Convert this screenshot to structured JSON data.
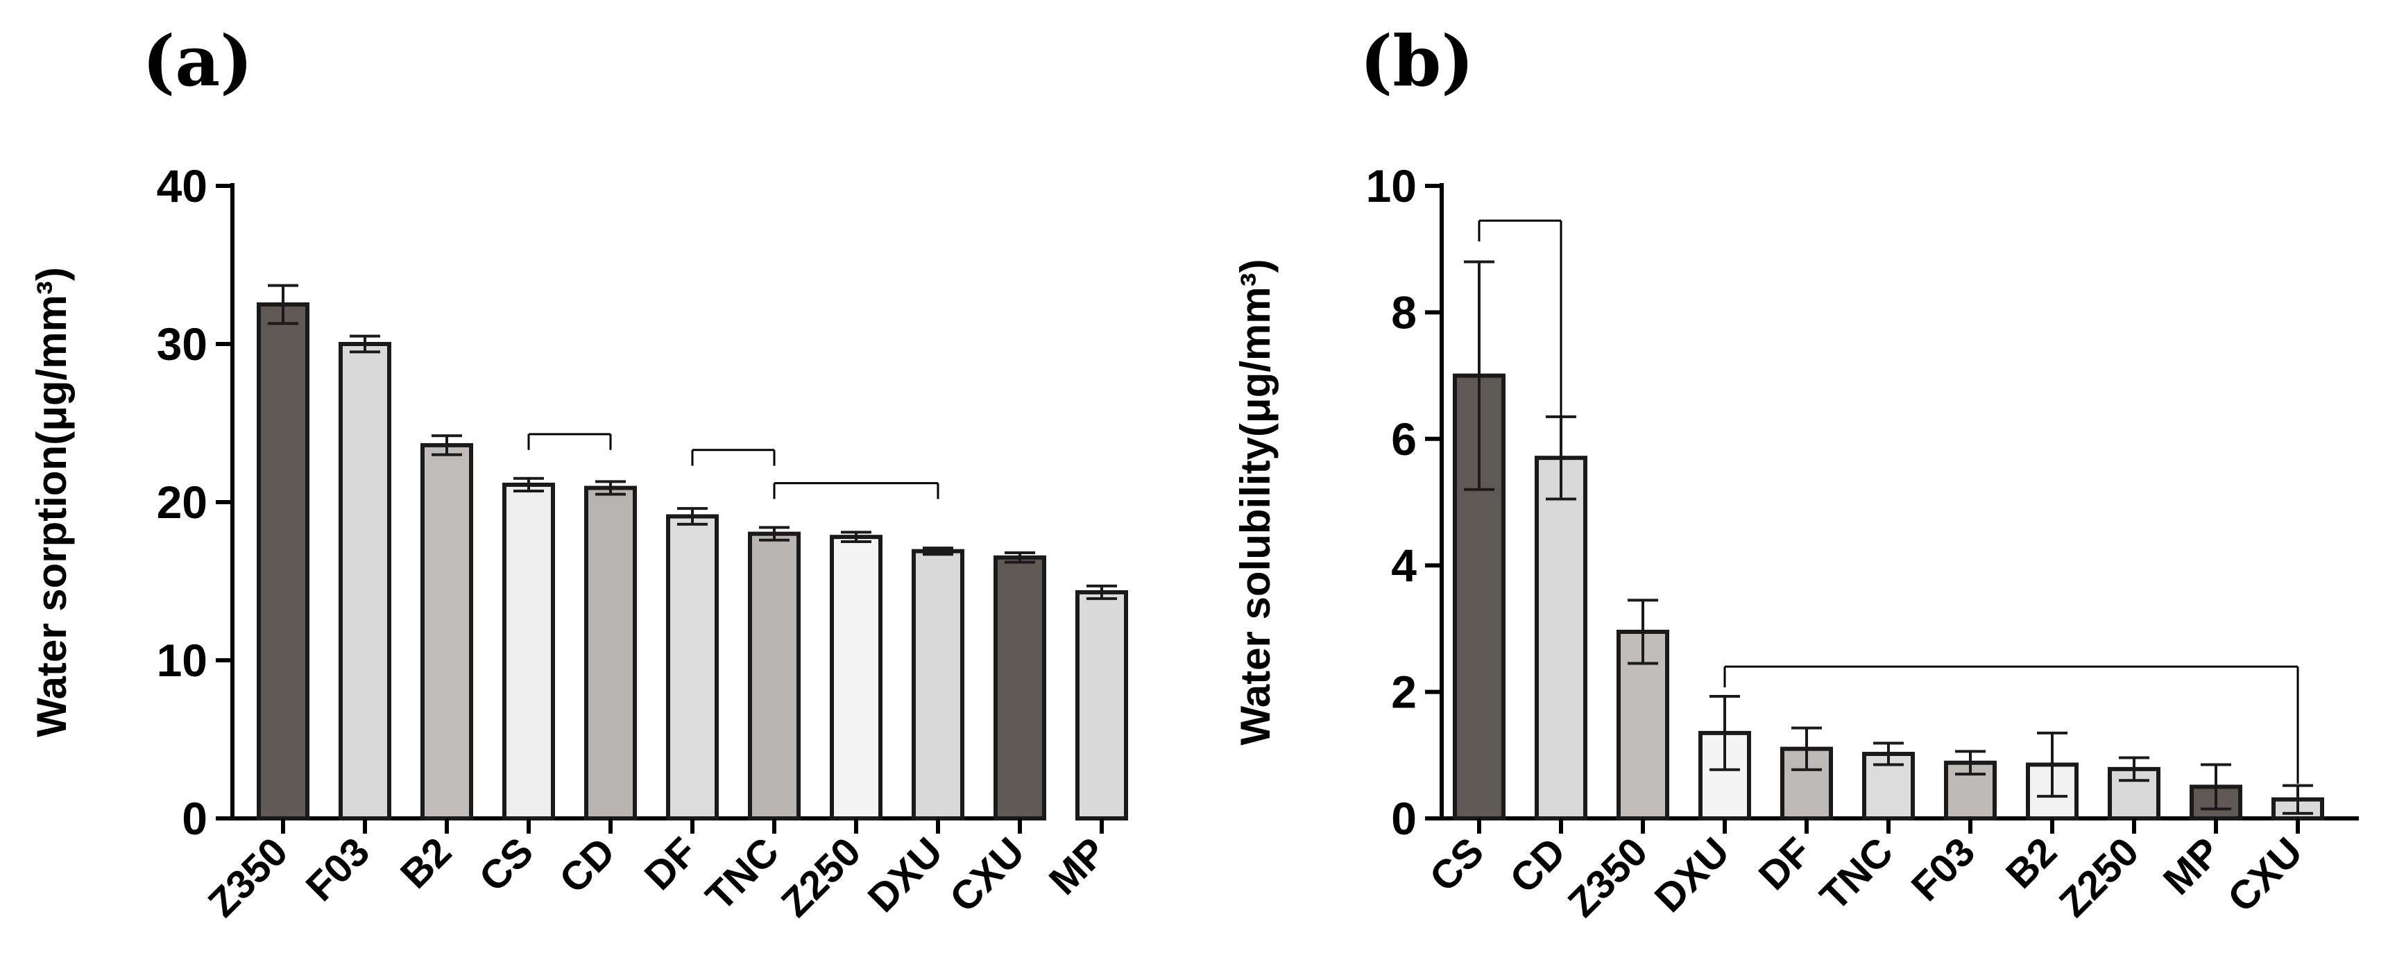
{
  "panels": [
    {
      "letter": "(a)"
    },
    {
      "letter": "(b)"
    }
  ],
  "chart_data": [
    {
      "type": "bar",
      "panel": "(a)",
      "title": "",
      "xlabel": "",
      "ylabel": "Water sorption(μg/mm³)",
      "ylim": [
        0,
        40
      ],
      "yticks": [
        0,
        10,
        20,
        30,
        40
      ],
      "categories": [
        "Z350",
        "F03",
        "B2",
        "CS",
        "CD",
        "DF",
        "TNC",
        "Z250",
        "DXU",
        "CXU",
        "MP"
      ],
      "values": [
        32.5,
        30.0,
        23.6,
        21.1,
        20.9,
        19.1,
        18.0,
        17.8,
        16.9,
        16.5,
        14.3
      ],
      "errors": [
        1.2,
        0.5,
        0.6,
        0.4,
        0.4,
        0.5,
        0.4,
        0.3,
        0.2,
        0.3,
        0.4
      ],
      "fills": [
        "#5f5854",
        "#d9d9d9",
        "#bfbcba",
        "#ededed",
        "#b7b3b1",
        "#dcdcdc",
        "#b9b5b3",
        "#f4f4f4",
        "#d9d9d9",
        "#5f5854",
        "#dadada"
      ],
      "brackets": [
        {
          "from": "CS",
          "to": "CD",
          "y": 24.3,
          "drop": 1.0
        },
        {
          "from": "DF",
          "to": "TNC",
          "y": 23.3,
          "drop": 1.0
        },
        {
          "from": "TNC",
          "to": "DXU",
          "y": 21.2,
          "drop": 1.0
        }
      ]
    },
    {
      "type": "bar",
      "panel": "(b)",
      "title": "",
      "xlabel": "",
      "ylabel": "Water solubility(μg/mm³)",
      "ylim": [
        0,
        10
      ],
      "yticks": [
        0,
        2,
        4,
        6,
        8,
        10
      ],
      "categories": [
        "CS",
        "CD",
        "Z350",
        "DXU",
        "DF",
        "TNC",
        "F03",
        "B2",
        "Z250",
        "MP",
        "CXU"
      ],
      "values": [
        7.0,
        5.7,
        2.95,
        1.35,
        1.1,
        1.02,
        0.88,
        0.85,
        0.78,
        0.5,
        0.3
      ],
      "errors": [
        1.8,
        0.65,
        0.5,
        0.58,
        0.33,
        0.17,
        0.18,
        0.5,
        0.18,
        0.35,
        0.22
      ],
      "fills": [
        "#5f5854",
        "#d9d9d9",
        "#bfbcba",
        "#f4f4f4",
        "#bdb9b7",
        "#dcdcdc",
        "#bdb9b7",
        "#f2f2f2",
        "#d9d9d9",
        "#5f5854",
        "#dadada"
      ],
      "brackets": [
        {
          "from": "CS",
          "to": "CD",
          "y": 9.45,
          "drop": 3.1,
          "drop_side": "right"
        },
        {
          "from": "DXU",
          "to": "CXU",
          "y": 2.4,
          "drop": 1.85,
          "drop_side": "right"
        }
      ]
    }
  ]
}
